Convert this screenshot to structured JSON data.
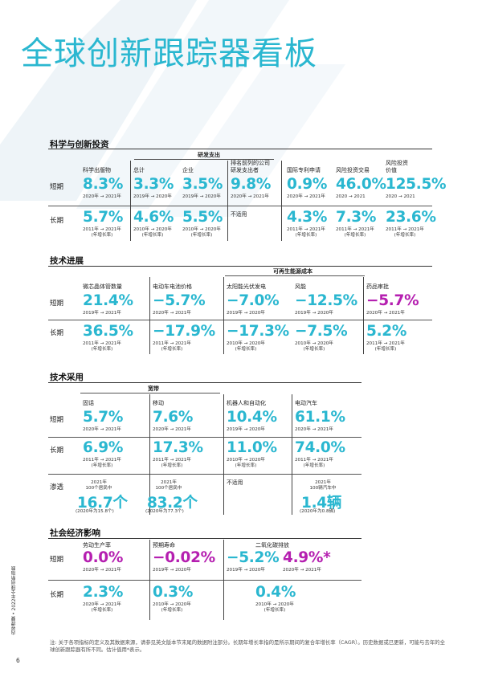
{
  "title": "全球创新跟踪器看板",
  "footnote": "注: 关于各项指标的定义及其数据来源，请参见英文版本节末尾的数据附注部分。长期年增长率指的是所示期间的复合年增长率（CAGR）。历史数据或已更新，可能与去年的全球创新跟踪器有所不同。估计值用*表示。",
  "page_number": "6",
  "sidebar_text": "内容提要 • 2022年全球创新指数",
  "colors": {
    "cyan": "#2ab7d0",
    "magenta": "#b51fb0",
    "band": "#eef4f8"
  },
  "sections": {
    "s1": {
      "title": "科学与创新投资",
      "group_header": "研发支出",
      "rows": {
        "short": "短期",
        "long": "长期"
      },
      "columns": [
        {
          "header": "科学出版物",
          "short_value": "8.3%",
          "short_period": "2020年 → 2021年",
          "long_value": "5.7%",
          "long_period": "2011年 → 2021年",
          "long_note": "(年增长率)",
          "short_color": "cyan",
          "long_color": "cyan"
        },
        {
          "header": "总计",
          "short_value": "3.3%",
          "short_period": "2019年 → 2020年",
          "long_value": "4.6%",
          "long_period": "2010年 → 2020年",
          "long_note": "(年增长率)",
          "short_color": "cyan",
          "long_color": "cyan"
        },
        {
          "header": "企业",
          "short_value": "3.5%",
          "short_period": "2019年 → 2020年",
          "long_value": "5.5%",
          "long_period": "2010年 → 2020年",
          "long_note": "(年增长率)",
          "short_color": "cyan",
          "long_color": "cyan"
        },
        {
          "header": "排名前列的公司\n研发支出者",
          "short_value": "9.8%",
          "short_period": "2020年 → 2021年",
          "long_value": "",
          "long_period": "",
          "long_note": "",
          "long_na": "不适用",
          "short_color": "cyan"
        },
        {
          "header": "国际专利申请",
          "short_value": "0.9%",
          "short_period": "2020年 → 2021年",
          "long_value": "4.3%",
          "long_period": "2011年 → 2021年",
          "long_note": "(年增长率)",
          "short_color": "cyan",
          "long_color": "cyan"
        },
        {
          "header": "风险投资交易",
          "short_value": "46.0%",
          "short_period": "2020 → 2021",
          "long_value": "7.3%",
          "long_period": "2011年 → 2021年",
          "long_note": "(年增长率)",
          "short_color": "cyan",
          "long_color": "cyan"
        },
        {
          "header": "风险投资\n价值",
          "short_value": "125.5%",
          "short_period": "2020 → 2021",
          "long_value": "23.6%",
          "long_period": "2011年 → 2021年",
          "long_note": "(年增长率)",
          "short_color": "cyan",
          "long_color": "cyan"
        }
      ]
    },
    "s2": {
      "title": "技术进展",
      "group_header": "可再生能源成本",
      "rows": {
        "short": "短期",
        "long": "长期"
      },
      "columns": [
        {
          "header": "微芯晶体管数量",
          "short_value": "21.4%",
          "short_period": "2019年 → 2021年",
          "long_value": "36.5%",
          "long_period": "2011年 → 2021年",
          "long_note": "(年增长率)",
          "short_color": "cyan",
          "long_color": "cyan"
        },
        {
          "header": "电动车电池价格",
          "short_value": "−5.7%",
          "short_period": "2020年 → 2021年",
          "long_value": "−17.9%",
          "long_period": "2011年 → 2021年",
          "long_note": "(年增长率)",
          "short_color": "cyan",
          "long_color": "cyan"
        },
        {
          "header": "太阳能光伏发电",
          "short_value": "−7.0%",
          "short_period": "2019年 → 2020年",
          "long_value": "−17.3%",
          "long_period": "2010年 → 2020年",
          "long_note": "(年增长率)",
          "short_color": "cyan",
          "long_color": "cyan"
        },
        {
          "header": "风能",
          "short_value": "−12.5%",
          "short_period": "2019年 → 2020年",
          "long_value": "−7.5%",
          "long_period": "2010年 → 2020年",
          "long_note": "(年增长率)",
          "short_color": "cyan",
          "long_color": "cyan"
        },
        {
          "header": "药品审批",
          "short_value": "−5.7%",
          "short_period": "2020年 → 2021年",
          "long_value": "5.2%",
          "long_period": "2011年 → 2021年",
          "long_note": "(年增长率)",
          "short_color": "magenta",
          "long_color": "cyan"
        }
      ]
    },
    "s3": {
      "title": "技术采用",
      "group_header": "宽带",
      "rows": {
        "short": "短期",
        "long": "长期",
        "penetration": "渗透"
      },
      "columns": [
        {
          "header": "固话",
          "short_value": "5.7%",
          "short_period": "2020年 → 2021年",
          "long_value": "6.9%",
          "long_period": "2011年 → 2021年",
          "long_note": "(年增长率)",
          "pen_year": "2021年",
          "pen_label": "100个居民中",
          "pen_value": "16.7个",
          "pen_note": "(2020年为15.8个)"
        },
        {
          "header": "移动",
          "short_value": "7.6%",
          "short_period": "2020年 → 2021年",
          "long_value": "17.3%",
          "long_period": "2011年 → 2021年",
          "long_note": "(年增长率)",
          "pen_year": "2021年",
          "pen_label": "100个居民中",
          "pen_value": "83.2个",
          "pen_note": "(2020年为77.3个)"
        },
        {
          "header": "机器人和自动化",
          "short_value": "10.4%",
          "short_period": "2019年 → 2020年",
          "long_value": "11.0%",
          "long_period": "2010年 → 2020年",
          "long_note": "(年增长率)",
          "pen_na": "不适用"
        },
        {
          "header": "电动汽车",
          "short_value": "61.1%",
          "short_period": "2020年 → 2021年",
          "long_value": "74.0%",
          "long_period": "2011年 → 2021年",
          "long_note": "(年增长率)",
          "pen_year": "2021年",
          "pen_label": "100辆汽车中",
          "pen_value": "1.4辆",
          "pen_note": "(2020年为0.8辆)"
        }
      ]
    },
    "s4": {
      "title": "社会经济影响",
      "rows": {
        "short": "短期",
        "long": "长期"
      },
      "columns": [
        {
          "header": "劳动生产率",
          "short_value": "0.0%",
          "short_period": "2020年 → 2021年",
          "long_value": "2.3%",
          "long_period": "2020年 → 2021年",
          "long_note": "(年增长率)",
          "short_color": "magenta",
          "long_color": "cyan"
        },
        {
          "header": "预期寿命",
          "short_value": "−0.02%",
          "short_period": "2019年 → 2020年",
          "long_value": "0.3%",
          "long_period": "2010年 → 2020年",
          "long_note": "(年增长率)",
          "short_color": "magenta",
          "long_color": "cyan"
        },
        {
          "header": "二氧化碳排放",
          "short_value": "−5.2%",
          "short_period": "2019年 → 2020年",
          "short_value_b": "4.9%*",
          "short_period_b": "2020年 → 2021年",
          "long_value": "0.4%",
          "long_period": "2010年 → 2020年",
          "long_note": "(年增长率)",
          "short_color": "cyan",
          "short_color_b": "magenta",
          "long_color": "cyan"
        }
      ]
    }
  }
}
